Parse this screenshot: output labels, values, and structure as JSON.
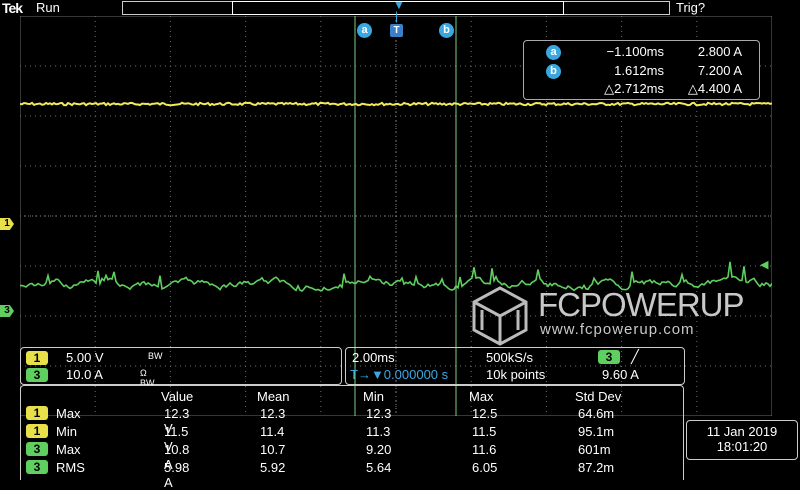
{
  "header": {
    "brand": "Tek",
    "state": "Run",
    "trigger_status": "Trig?"
  },
  "markers": {
    "cursor_a": "a",
    "cursor_b": "b",
    "trigger": "T",
    "ch1": "1",
    "ch3": "3"
  },
  "cursor_readout": {
    "rows": [
      {
        "badge": "a",
        "time": "−1.100ms",
        "value": "2.800 A"
      },
      {
        "badge": "b",
        "time": "1.612ms",
        "value": "7.200 A"
      },
      {
        "badge": "",
        "time": "△2.712ms",
        "value": "△4.400 A"
      }
    ]
  },
  "watermark": {
    "name": "FCPOWERUP",
    "url": "www.fcpowerup.com"
  },
  "channels": [
    {
      "tag": "1",
      "scale": "5.00 V",
      "flags": "BW",
      "color": "#e8e04a"
    },
    {
      "tag": "3",
      "scale": "10.0 A",
      "flags": "Ω BW",
      "color": "#5fd05f"
    }
  ],
  "horizontal": {
    "time_div": "2.00ms",
    "sample_rate": "500kS/s",
    "trigger_channel": "3",
    "trigger_slope": "╱",
    "position_label": "T→▼0.000000 s",
    "record_length": "10k points",
    "trigger_level": "9.60 A"
  },
  "measurements": {
    "headers": [
      "Value",
      "Mean",
      "Min",
      "Max",
      "Std Dev"
    ],
    "rows": [
      {
        "ch": "1",
        "name": "Max",
        "value": "12.3 V",
        "mean": "12.3",
        "min": "12.3",
        "max": "12.5",
        "std": "64.6m"
      },
      {
        "ch": "1",
        "name": "Min",
        "value": "11.5 V",
        "mean": "11.4",
        "min": "11.3",
        "max": "11.5",
        "std": "95.1m"
      },
      {
        "ch": "3",
        "name": "Max",
        "value": "10.8 A",
        "mean": "10.7",
        "min": "9.20",
        "max": "11.6",
        "std": "601m"
      },
      {
        "ch": "3",
        "name": "RMS",
        "value": "5.98 A",
        "mean": "5.92",
        "min": "5.64",
        "max": "6.05",
        "std": "87.2m"
      }
    ]
  },
  "datetime": {
    "date": "11 Jan  2019",
    "time": "18:01:20"
  },
  "colors": {
    "ch1": "#e8e04a",
    "ch3": "#5fd05f",
    "cursor": "#3aa8e0",
    "grid": "#6e6e6e"
  }
}
